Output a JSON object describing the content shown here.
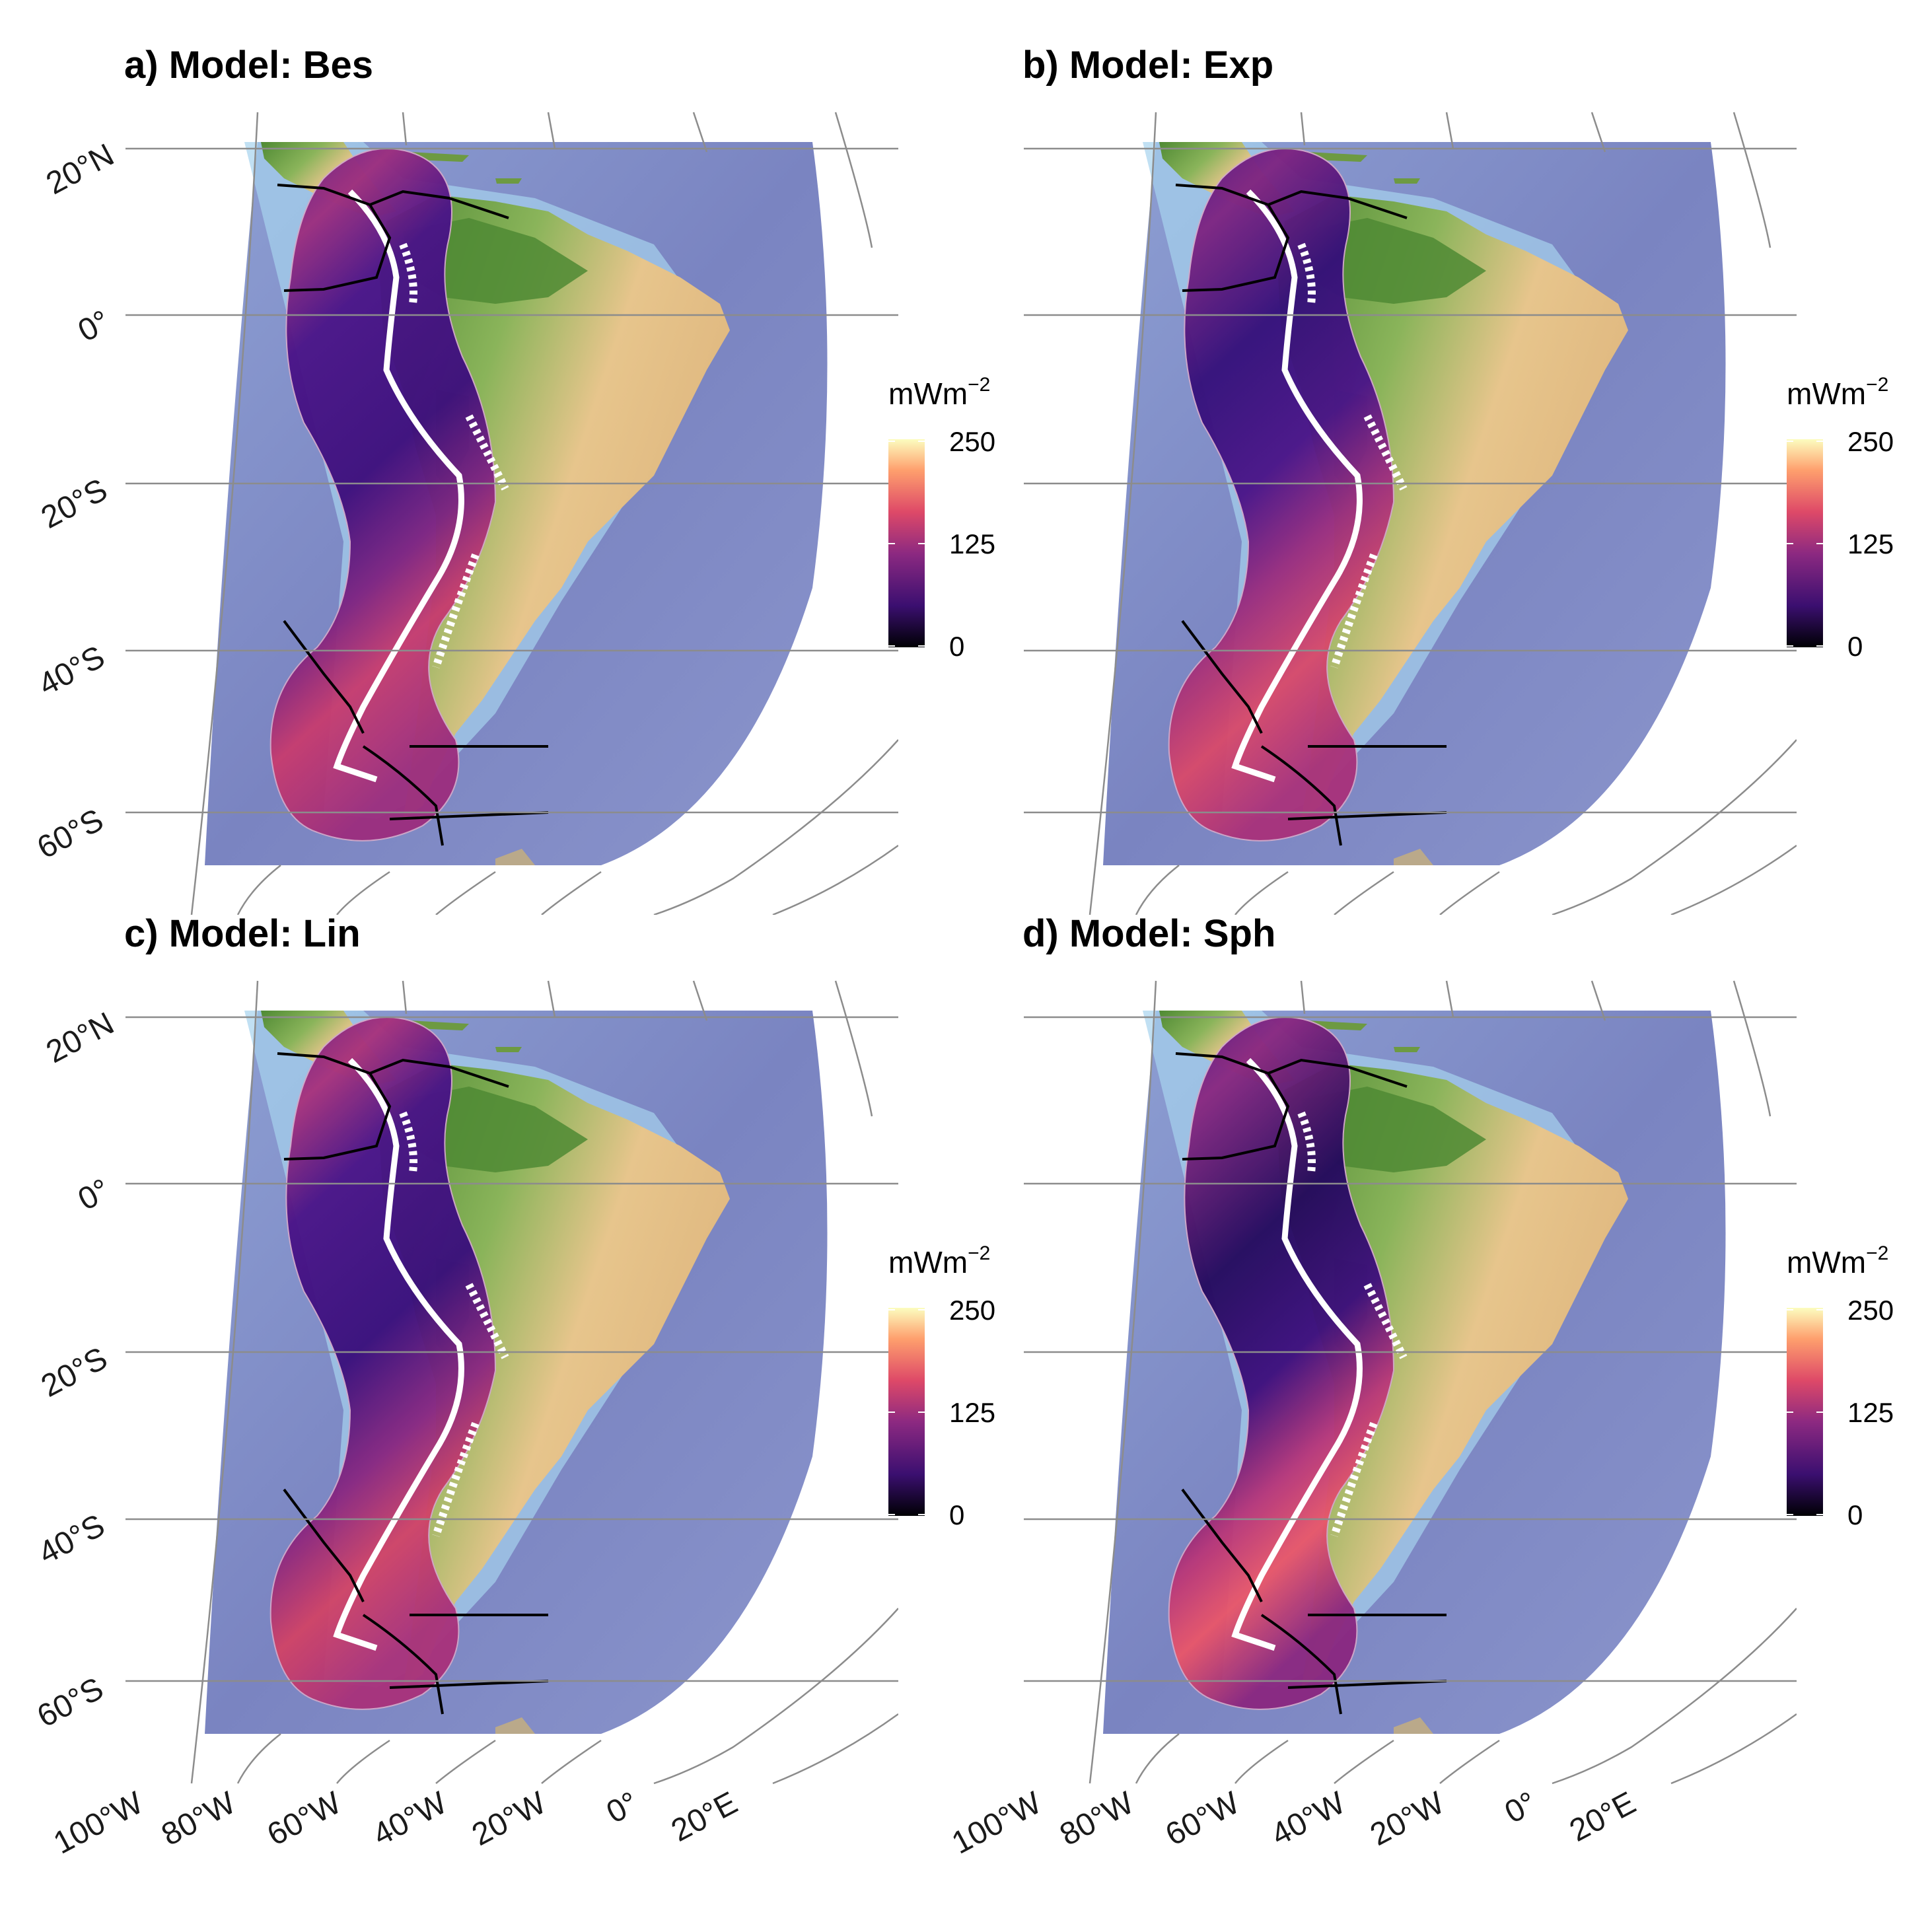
{
  "panels": [
    {
      "id": "a",
      "title": "a) Model: Bes",
      "model": "Bes"
    },
    {
      "id": "b",
      "title": "b) Model: Exp",
      "model": "Exp"
    },
    {
      "id": "c",
      "title": "c) Model: Lin",
      "model": "Lin"
    },
    {
      "id": "d",
      "title": "d) Model: Sph",
      "model": "Sph"
    }
  ],
  "latitude_labels": [
    "20°N",
    "0°",
    "20°S",
    "40°S",
    "60°S"
  ],
  "longitude_labels": [
    "100°W",
    "80°W",
    "60°W",
    "40°W",
    "20°W",
    "0°",
    "20°E"
  ],
  "legend": {
    "unit": "mWm",
    "unit_exponent": "−2",
    "ticks": [
      "250",
      "125",
      "0"
    ],
    "range": [
      0,
      250
    ],
    "palette": [
      "#000004",
      "#3b0f70",
      "#8c2981",
      "#de4968",
      "#fe9f6d",
      "#fcfdbf"
    ]
  },
  "colors": {
    "ocean": "#7b86c2",
    "shelf": "#9fc9ea",
    "land_low": "#5a8f3a",
    "land_high": "#e6c48c",
    "subduction_trace": "#ffffff",
    "plate_boundary": "#000000",
    "graticule": "#8c8c8c"
  }
}
